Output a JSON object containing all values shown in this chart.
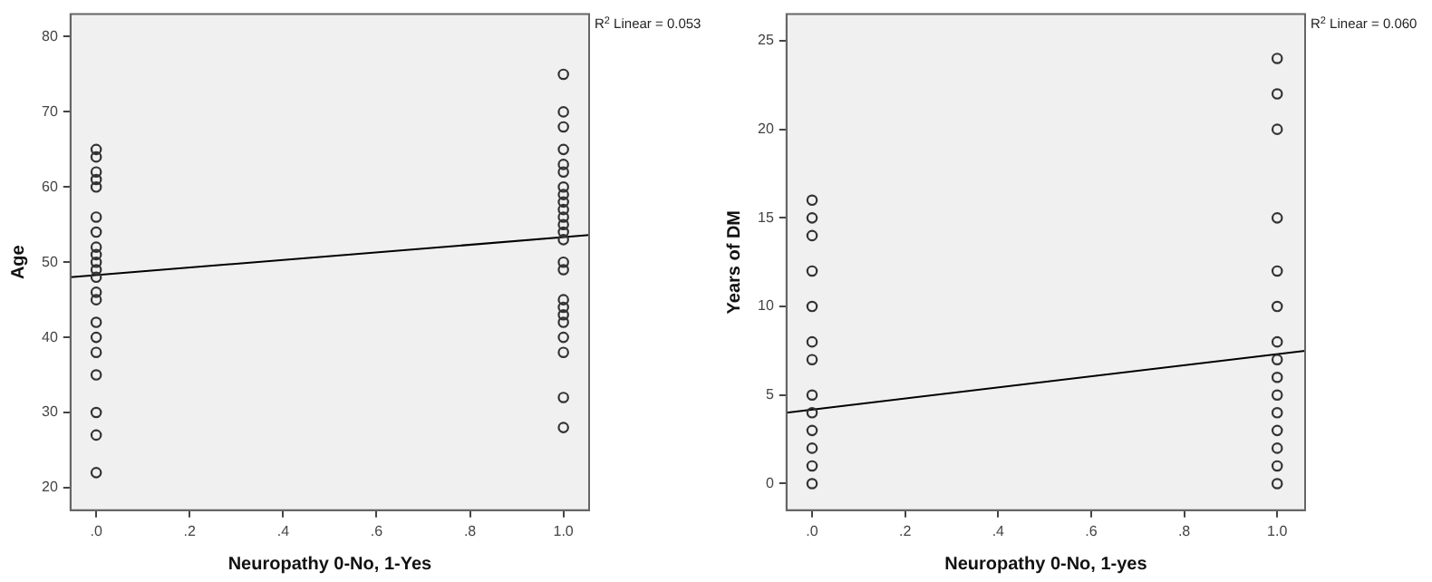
{
  "chart_data": [
    {
      "type": "scatter",
      "xlabel": "Neuropathy 0-No, 1-Yes",
      "ylabel": "Age",
      "annotations": [
        "R$^{2}$ Linear = 0.053"
      ],
      "xlim": [
        -0.055,
        1.055
      ],
      "xticks": [
        {
          "value": 0,
          "label": ".0"
        },
        {
          "value": 0.2,
          "label": ".2"
        },
        {
          "value": 0.4,
          "label": ".4"
        },
        {
          "value": 0.6,
          "label": ".6"
        },
        {
          "value": 0.8,
          "label": ".8"
        },
        {
          "value": 1,
          "label": "1.0"
        }
      ],
      "ylim": [
        17,
        83
      ],
      "yticks": [
        20,
        30,
        40,
        50,
        60,
        70,
        80
      ],
      "grid": false,
      "legend": false,
      "marker": "circle",
      "series": [
        {
          "type": "scatter",
          "color": "#333333",
          "x": [
            0,
            0,
            0,
            0,
            0,
            0,
            0,
            0,
            0,
            0,
            0,
            0,
            0,
            0,
            0,
            0,
            0,
            0,
            0,
            0,
            0
          ],
          "values": [
            65,
            64,
            62,
            61,
            60,
            56,
            54,
            52,
            51,
            50,
            49,
            48,
            46,
            45,
            42,
            40,
            38,
            35,
            30,
            27,
            22
          ]
        },
        {
          "type": "scatter",
          "color": "#333333",
          "x": [
            1,
            1,
            1,
            1,
            1,
            1,
            1,
            1,
            1,
            1,
            1,
            1,
            1,
            1,
            1,
            1,
            1,
            1,
            1,
            1,
            1,
            1,
            1,
            1
          ],
          "values": [
            75,
            70,
            68,
            65,
            63,
            62,
            60,
            59,
            58,
            57,
            56,
            55,
            54,
            53,
            50,
            49,
            45,
            44,
            43,
            42,
            40,
            38,
            32,
            28
          ]
        },
        {
          "type": "line",
          "color": "#000000",
          "marker": "none",
          "x": [
            -0.055,
            1.055
          ],
          "values": [
            48.0,
            53.6
          ]
        }
      ]
    },
    {
      "type": "scatter",
      "xlabel": "Neuropathy 0-No, 1-yes",
      "ylabel": "Years of DM",
      "annotations": [
        "R$^{2}$ Linear = 0.060"
      ],
      "xlim": [
        -0.055,
        1.06
      ],
      "xticks": [
        {
          "value": 0,
          "label": ".0"
        },
        {
          "value": 0.2,
          "label": ".2"
        },
        {
          "value": 0.4,
          "label": ".4"
        },
        {
          "value": 0.6,
          "label": ".6"
        },
        {
          "value": 0.8,
          "label": ".8"
        },
        {
          "value": 1,
          "label": "1.0"
        }
      ],
      "ylim": [
        -1.5,
        26.5
      ],
      "yticks": [
        0,
        5,
        10,
        15,
        20,
        25
      ],
      "grid": false,
      "legend": false,
      "marker": "circle",
      "series": [
        {
          "type": "scatter",
          "color": "#333333",
          "x": [
            0,
            0,
            0,
            0,
            0,
            0,
            0,
            0,
            0,
            0,
            0,
            0,
            0
          ],
          "values": [
            16,
            15,
            14,
            12,
            10,
            8,
            7,
            5,
            4,
            3,
            2,
            1,
            0
          ]
        },
        {
          "type": "scatter",
          "color": "#333333",
          "x": [
            1,
            1,
            1,
            1,
            1,
            1,
            1,
            1,
            1,
            1,
            1,
            1,
            1,
            1,
            1
          ],
          "values": [
            24,
            22,
            20,
            15,
            12,
            10,
            8,
            7,
            6,
            5,
            4,
            3,
            2,
            1,
            0
          ]
        },
        {
          "type": "line",
          "color": "#000000",
          "marker": "none",
          "x": [
            -0.055,
            1.06
          ],
          "values": [
            4.0,
            7.5
          ]
        }
      ]
    }
  ]
}
